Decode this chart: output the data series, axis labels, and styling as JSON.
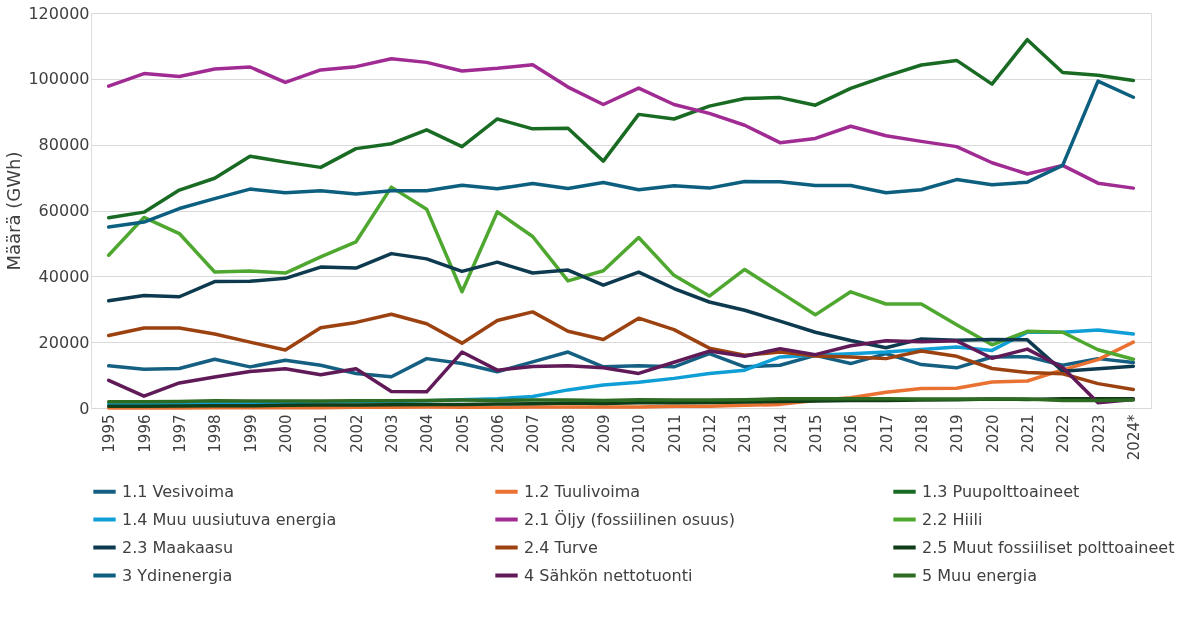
{
  "chart_data": {
    "type": "line",
    "ylabel": "Määrä (GWh)",
    "categories": [
      "1995",
      "1996",
      "1997",
      "1998",
      "1999",
      "2000",
      "2001",
      "2002",
      "2003",
      "2004",
      "2005",
      "2006",
      "2007",
      "2008",
      "2009",
      "2010",
      "2011",
      "2012",
      "2013",
      "2014",
      "2015",
      "2016",
      "2017",
      "2018",
      "2019",
      "2020",
      "2021",
      "2022",
      "2023",
      "2024*"
    ],
    "ylim": [
      0,
      120000
    ],
    "yticks": [
      0,
      20000,
      40000,
      60000,
      80000,
      100000,
      120000
    ],
    "grid": "y",
    "legend": "bottom",
    "series": [
      {
        "name": "1.1 Vesivoima",
        "color": "#156082",
        "values": [
          12800,
          11800,
          12000,
          14800,
          12500,
          14500,
          13000,
          10500,
          9500,
          15000,
          13500,
          11000,
          14000,
          17000,
          12500,
          12800,
          12500,
          16500,
          12500,
          13000,
          16000,
          13500,
          16500,
          13200,
          12200,
          15500,
          15600,
          13000,
          15000,
          13800
        ]
      },
      {
        "name": "1.2 Tuulivoima",
        "color": "#e97132",
        "values": [
          0,
          0,
          0,
          100,
          100,
          100,
          100,
          200,
          200,
          300,
          200,
          200,
          300,
          300,
          300,
          300,
          500,
          500,
          800,
          1100,
          2300,
          3100,
          4800,
          5900,
          6000,
          7900,
          8200,
          11600,
          14700,
          20000
        ]
      },
      {
        "name": "1.3 Puupolttoaineet",
        "color": "#196b24",
        "values": [
          57800,
          59500,
          66200,
          69800,
          76500,
          74700,
          73100,
          78800,
          80300,
          84500,
          79400,
          87800,
          84800,
          85000,
          75000,
          89200,
          87800,
          91700,
          94000,
          94300,
          92000,
          97100,
          100800,
          104200,
          105600,
          98400,
          111900,
          101900,
          101100,
          99500
        ]
      },
      {
        "name": "1.4 Muu uusiutuva energia",
        "color": "#0f9ed5",
        "values": [
          1200,
          1300,
          1400,
          1500,
          1600,
          1700,
          1800,
          1900,
          2000,
          2200,
          2500,
          2800,
          3500,
          5500,
          7000,
          7800,
          9000,
          10500,
          11500,
          15500,
          16000,
          16500,
          17000,
          17800,
          18500,
          17500,
          23000,
          23000,
          23700,
          22500
        ]
      },
      {
        "name": "2.1 Öljy (fossiilinen osuus)",
        "color": "#a02b93",
        "values": [
          97800,
          101600,
          100700,
          103000,
          103600,
          98900,
          102700,
          103700,
          106100,
          105000,
          102400,
          103200,
          104300,
          97500,
          92200,
          97200,
          92200,
          89500,
          85900,
          80600,
          81900,
          85600,
          82700,
          81000,
          79400,
          74500,
          71100,
          73700,
          68300,
          66800
        ]
      },
      {
        "name": "2.2 Hiili",
        "color": "#4ea72e",
        "values": [
          46400,
          57900,
          53000,
          41300,
          41600,
          41000,
          45900,
          50500,
          67100,
          60400,
          35300,
          59600,
          52100,
          38600,
          41700,
          51800,
          40300,
          34000,
          42100,
          35200,
          28300,
          35300,
          31600,
          31600,
          25300,
          19200,
          23300,
          23000,
          17700,
          14800
        ]
      },
      {
        "name": "2.3 Maakaasu",
        "color": "#0e3a4f",
        "values": [
          32600,
          34200,
          33800,
          38400,
          38500,
          39400,
          42800,
          42500,
          46900,
          45300,
          41500,
          44300,
          41000,
          41900,
          37300,
          41300,
          36300,
          32200,
          29700,
          26400,
          23000,
          20500,
          18300,
          21000,
          20600,
          20800,
          20700,
          11200,
          11900,
          12700
        ]
      },
      {
        "name": "2.4 Turve",
        "color": "#9c4210",
        "values": [
          22000,
          24300,
          24300,
          22500,
          20000,
          17600,
          24400,
          26000,
          28500,
          25600,
          19700,
          26600,
          29200,
          23300,
          20800,
          27300,
          23800,
          18200,
          16000,
          17000,
          15800,
          15500,
          15000,
          17300,
          15700,
          12000,
          10800,
          10400,
          7400,
          5600
        ]
      },
      {
        "name": "2.5 Muut fossiiliset polttoaineet",
        "color": "#0f3d17",
        "values": [
          500,
          500,
          600,
          700,
          700,
          800,
          900,
          900,
          1000,
          1100,
          1100,
          1200,
          1300,
          1500,
          1400,
          1600,
          1600,
          1700,
          1800,
          2000,
          2100,
          2300,
          2300,
          2400,
          2500,
          2700,
          2600,
          2800,
          2800,
          2800
        ]
      },
      {
        "name": "3 Ydinenergia",
        "color": "#0d5f80",
        "values": [
          55000,
          56500,
          60600,
          63600,
          66500,
          65400,
          66000,
          65000,
          66000,
          66000,
          67700,
          66600,
          68200,
          66700,
          68500,
          66300,
          67500,
          66800,
          68800,
          68700,
          67600,
          67600,
          65400,
          66300,
          69400,
          67800,
          68600,
          73700,
          99300,
          94400
        ]
      },
      {
        "name": "4 Sähkön nettotuonti",
        "color": "#5f1a57",
        "values": [
          8400,
          3600,
          7600,
          9400,
          11100,
          11900,
          10100,
          11900,
          5000,
          4900,
          17000,
          11500,
          12600,
          12800,
          12200,
          10500,
          13900,
          17300,
          15700,
          18000,
          16200,
          18900,
          20400,
          20100,
          20400,
          15100,
          17900,
          12300,
          1600,
          2600
        ]
      },
      {
        "name": "5 Muu energia",
        "color": "#2e6b22",
        "values": [
          1900,
          1900,
          2000,
          2200,
          2100,
          2100,
          2100,
          2200,
          2200,
          2300,
          2400,
          2300,
          2400,
          2400,
          2300,
          2500,
          2400,
          2400,
          2500,
          2800,
          2800,
          2800,
          2800,
          2700,
          2700,
          2700,
          2700,
          2300,
          2300,
          2400
        ]
      }
    ]
  }
}
